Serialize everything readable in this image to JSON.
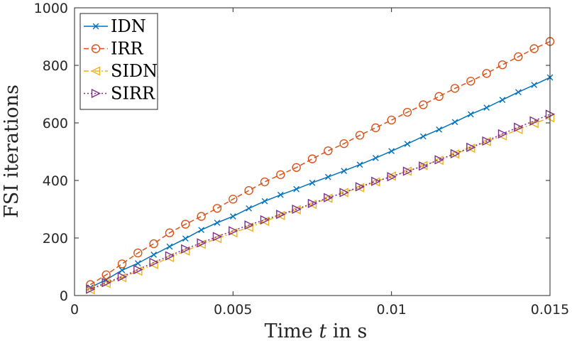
{
  "chart_data": {
    "type": "line",
    "title": "",
    "xlabel": "Time",
    "xlabel_var": "t",
    "xlabel_suffix": "in s",
    "ylabel": "FSI iterations",
    "xlim": [
      0,
      0.015
    ],
    "ylim": [
      0,
      1000
    ],
    "xticks": [
      0,
      0.005,
      0.01,
      0.015
    ],
    "xtick_labels": [
      "0",
      "0.005",
      "0.01",
      "0.015"
    ],
    "yticks": [
      0,
      200,
      400,
      600,
      800,
      1000
    ],
    "ytick_labels": [
      "0",
      "200",
      "400",
      "600",
      "800",
      "1000"
    ],
    "grid": false,
    "legend_position": "top-left",
    "x": [
      0.0005,
      0.001,
      0.0015,
      0.002,
      0.0025,
      0.003,
      0.0035,
      0.004,
      0.0045,
      0.005,
      0.0055,
      0.006,
      0.0065,
      0.007,
      0.0075,
      0.008,
      0.0085,
      0.009,
      0.0095,
      0.01,
      0.0105,
      0.011,
      0.0115,
      0.012,
      0.0125,
      0.013,
      0.0135,
      0.014,
      0.0145,
      0.015
    ],
    "series": [
      {
        "name": "IDN",
        "color": "#0072BD",
        "marker": "x",
        "line_style": "solid",
        "values": [
          28,
          55,
          88,
          112,
          142,
          170,
          198,
          228,
          253,
          275,
          303,
          328,
          350,
          370,
          392,
          412,
          433,
          455,
          478,
          502,
          527,
          553,
          577,
          603,
          630,
          653,
          680,
          707,
          732,
          758
        ]
      },
      {
        "name": "IRR",
        "color": "#D95319",
        "marker": "circle",
        "line_style": "dashed",
        "values": [
          38,
          72,
          110,
          148,
          180,
          218,
          248,
          275,
          303,
          335,
          365,
          395,
          420,
          445,
          475,
          503,
          528,
          557,
          583,
          610,
          637,
          663,
          692,
          720,
          745,
          772,
          802,
          830,
          858,
          883
        ]
      },
      {
        "name": "SIDN",
        "color": "#EDB120",
        "marker": "triangle-left",
        "line_style": "dashdot",
        "values": [
          20,
          42,
          62,
          85,
          108,
          132,
          155,
          178,
          198,
          218,
          237,
          258,
          278,
          298,
          317,
          338,
          358,
          375,
          395,
          415,
          432,
          452,
          470,
          492,
          512,
          535,
          555,
          577,
          598,
          618
        ]
      },
      {
        "name": "SIRR",
        "color": "#7E2F8E",
        "marker": "triangle-right",
        "line_style": "dotted",
        "values": [
          22,
          45,
          65,
          90,
          115,
          138,
          162,
          183,
          205,
          225,
          245,
          263,
          282,
          300,
          320,
          340,
          358,
          378,
          397,
          413,
          432,
          450,
          472,
          493,
          515,
          537,
          562,
          585,
          607,
          630
        ]
      }
    ]
  }
}
